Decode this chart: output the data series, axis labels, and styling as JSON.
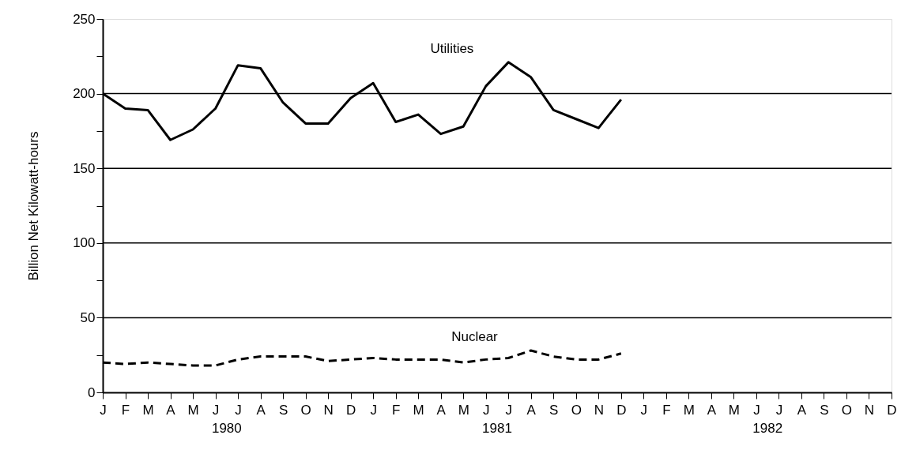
{
  "chart_data": {
    "type": "line",
    "ylabel": "Billion Net Kilowatt-hours",
    "categories": [
      "J",
      "F",
      "M",
      "A",
      "M",
      "J",
      "J",
      "A",
      "S",
      "O",
      "N",
      "D",
      "J",
      "F",
      "M",
      "A",
      "M",
      "J",
      "J",
      "A",
      "S",
      "O",
      "N",
      "D",
      "J",
      "F",
      "M",
      "A",
      "M",
      "J",
      "J",
      "A",
      "S",
      "O",
      "N",
      "D"
    ],
    "series": [
      {
        "name": "Utilities",
        "color": "#000000",
        "line_style": "solid",
        "values": [
          200,
          190,
          189,
          169,
          176,
          190,
          219,
          217,
          194,
          180,
          180,
          197,
          207,
          181,
          186,
          173,
          178,
          205,
          221,
          211,
          189,
          183,
          177,
          196,
          null,
          null,
          null,
          null,
          null,
          null,
          null,
          null,
          null,
          null,
          null,
          null
        ]
      },
      {
        "name": "Nuclear",
        "color": "#000000",
        "line_style": "dashed",
        "values": [
          20,
          19,
          20,
          19,
          18,
          18,
          22,
          24,
          24,
          24,
          21,
          22,
          23,
          22,
          22,
          22,
          20,
          22,
          23,
          28,
          24,
          22,
          22,
          26,
          null,
          null,
          null,
          null,
          null,
          null,
          null,
          null,
          null,
          null,
          null,
          null
        ]
      }
    ],
    "ylim": [
      0,
      250
    ],
    "yticks": [
      0,
      {
        "value": 25,
        "label": null
      },
      50,
      {
        "value": 75,
        "label": null
      },
      100,
      {
        "value": 125,
        "label": null
      },
      150,
      {
        "value": 175,
        "label": null
      },
      200,
      {
        "value": 225,
        "label": null
      },
      250
    ],
    "grid": "y",
    "marker": "none",
    "annotations": [
      "1980",
      "1981",
      "1982"
    ]
  }
}
